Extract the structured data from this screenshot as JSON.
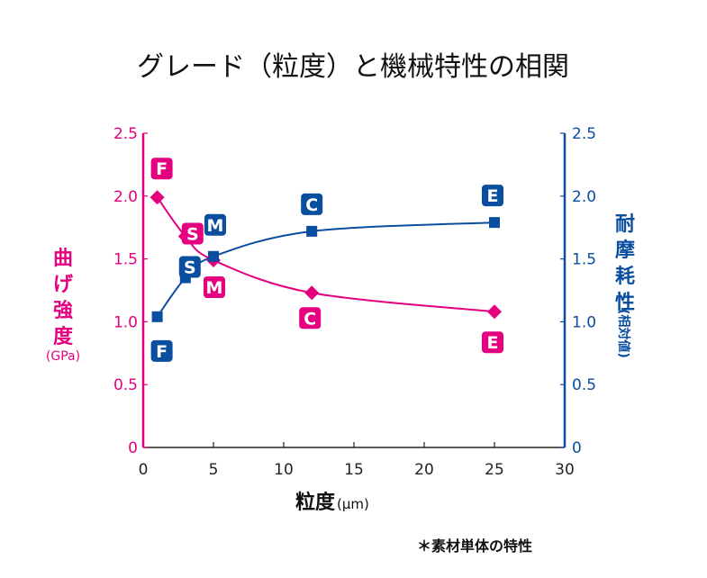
{
  "colors": {
    "strength": "#e4007f",
    "wear": "#0a4ea0",
    "axis_x": "#222222"
  },
  "chart_data": {
    "type": "line",
    "title": "グレード（粒度）と機械特性の相関",
    "xlabel": "粒度",
    "xlabel_unit": "(µm)",
    "xlim": [
      0,
      30
    ],
    "x_ticks": [
      "0",
      "5",
      "10",
      "15",
      "20",
      "25",
      "30"
    ],
    "x_tick_values": [
      0,
      5,
      10,
      15,
      20,
      25,
      30
    ],
    "y_left": {
      "label_chars": [
        "曲",
        "げ",
        "強",
        "度"
      ],
      "unit": "(GPa)",
      "ylim": [
        0,
        2.5
      ],
      "ticks": [
        "0",
        "0.5",
        "1.0",
        "1.5",
        "2.0",
        "2.5"
      ],
      "tick_values": [
        0,
        0.5,
        1.0,
        1.5,
        2.0,
        2.5
      ]
    },
    "y_right": {
      "label_chars": [
        "耐",
        "摩",
        "耗",
        "性"
      ],
      "unit": "(相対値)",
      "ylim": [
        0,
        2.5
      ],
      "ticks": [
        "0",
        "0.5",
        "1.0",
        "1.5",
        "2.0",
        "2.5"
      ],
      "tick_values": [
        0,
        0.5,
        1.0,
        1.5,
        2.0,
        2.5
      ]
    },
    "grid": false,
    "series": [
      {
        "name": "曲げ強度",
        "axis": "left",
        "marker": "diamond",
        "x": [
          1,
          3,
          5,
          12,
          25
        ],
        "values": [
          1.99,
          1.68,
          1.49,
          1.23,
          1.08
        ],
        "labels": [
          "F",
          "S",
          "M",
          "C",
          "E"
        ]
      },
      {
        "name": "耐摩耗性",
        "axis": "right",
        "marker": "square",
        "x": [
          1,
          3,
          5,
          12,
          25
        ],
        "values": [
          1.04,
          1.35,
          1.52,
          1.72,
          1.79
        ],
        "labels": [
          "F",
          "S",
          "M",
          "C",
          "E"
        ]
      }
    ],
    "footnote": "＊素材単体の特性"
  }
}
